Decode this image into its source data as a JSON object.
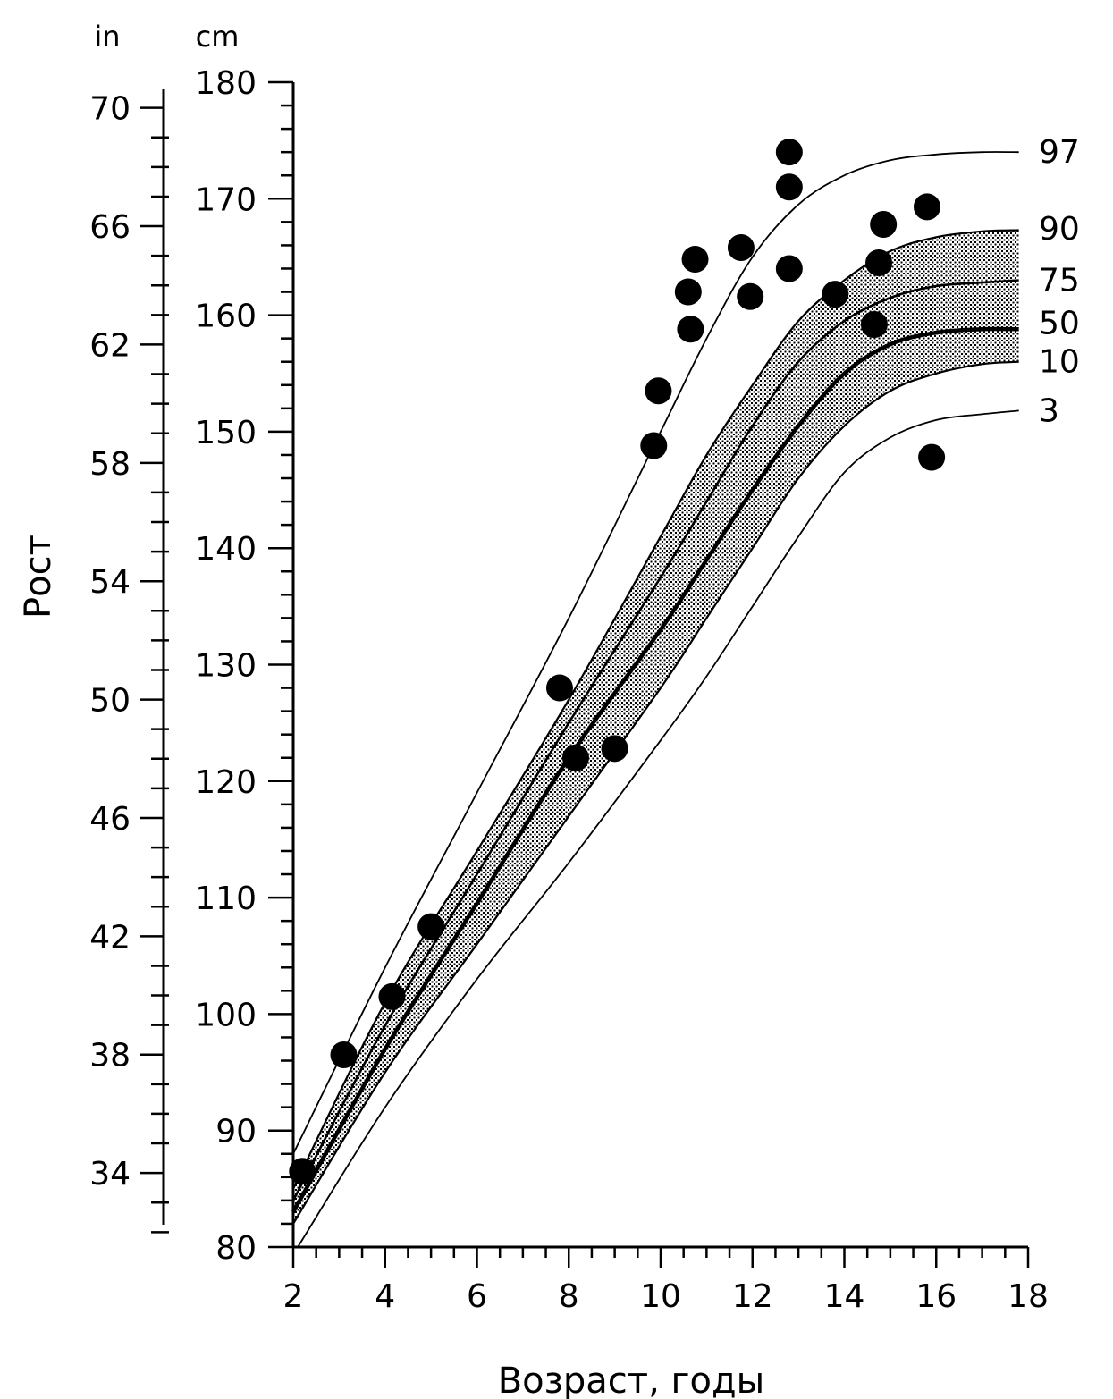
{
  "chart_data": {
    "type": "line",
    "xlabel": "Возраст, годы",
    "ylabel": "Рост",
    "unit_left": "in",
    "unit_right": "cm",
    "x_ticks": [
      "2",
      "4",
      "6",
      "8",
      "10",
      "12",
      "14",
      "16",
      "18"
    ],
    "xlim": [
      2,
      18
    ],
    "ylim_cm": [
      80,
      180
    ],
    "cm_ticks": [
      "80",
      "90",
      "100",
      "110",
      "120",
      "130",
      "140",
      "150",
      "160",
      "170",
      "180"
    ],
    "inch_ticks": [
      "34",
      "38",
      "42",
      "46",
      "50",
      "54",
      "58",
      "62",
      "66",
      "70"
    ],
    "ylim_in": [
      31.5,
      70.9
    ],
    "grid": false,
    "shaded_band": [
      "10",
      "90"
    ],
    "series": [
      {
        "name": "97",
        "x": [
          2,
          4,
          6,
          8,
          10,
          11,
          12,
          13,
          14,
          15,
          16,
          17,
          17.8
        ],
        "y": [
          88,
          104,
          119,
          134,
          150,
          158,
          165,
          169.5,
          172,
          173.3,
          173.8,
          174,
          174
        ]
      },
      {
        "name": "90",
        "x": [
          2,
          4,
          6,
          8,
          10,
          11,
          12,
          13,
          14,
          15,
          16,
          17,
          17.8
        ],
        "y": [
          85,
          101,
          114,
          127,
          141,
          148,
          154,
          159.5,
          163,
          165.5,
          166.7,
          167.2,
          167.3
        ]
      },
      {
        "name": "75",
        "x": [
          2,
          4,
          6,
          8,
          10,
          11,
          12,
          13,
          14,
          15,
          16,
          17,
          17.8
        ],
        "y": [
          84,
          99,
          112,
          125,
          137.5,
          144,
          150.5,
          156,
          159.5,
          161.5,
          162.5,
          162.8,
          163
        ]
      },
      {
        "name": "50",
        "x": [
          2,
          4,
          6,
          8,
          10,
          11,
          12,
          13,
          14,
          15,
          16,
          17,
          17.8
        ],
        "y": [
          83,
          97,
          109.5,
          122,
          133,
          139,
          145,
          150.5,
          155,
          157.5,
          158.5,
          158.8,
          158.8
        ]
      },
      {
        "name": "10",
        "x": [
          2,
          4,
          6,
          8,
          10,
          11,
          12,
          13,
          14,
          15,
          16,
          17,
          17.8
        ],
        "y": [
          82,
          95,
          106,
          117,
          128,
          134,
          140,
          146,
          150.5,
          153.5,
          155,
          155.8,
          156
        ]
      },
      {
        "name": "3",
        "x": [
          2.1,
          4,
          6,
          8,
          10,
          11,
          12,
          13,
          14,
          15,
          16,
          17,
          17.8
        ],
        "y": [
          80,
          92,
          103,
          113,
          123.5,
          129,
          135,
          141,
          146.5,
          149.5,
          151,
          151.5,
          151.8
        ]
      }
    ],
    "points": [
      {
        "x": 2.2,
        "y": 86.5
      },
      {
        "x": 3.1,
        "y": 96.5
      },
      {
        "x": 4.15,
        "y": 101.5
      },
      {
        "x": 5.0,
        "y": 107.5
      },
      {
        "x": 7.8,
        "y": 128.0
      },
      {
        "x": 8.15,
        "y": 122.0
      },
      {
        "x": 9.0,
        "y": 122.8
      },
      {
        "x": 9.85,
        "y": 148.8
      },
      {
        "x": 9.95,
        "y": 153.5
      },
      {
        "x": 10.6,
        "y": 162.0
      },
      {
        "x": 10.65,
        "y": 158.8
      },
      {
        "x": 10.75,
        "y": 164.8
      },
      {
        "x": 11.75,
        "y": 165.8
      },
      {
        "x": 11.95,
        "y": 161.6
      },
      {
        "x": 12.8,
        "y": 174.0
      },
      {
        "x": 12.8,
        "y": 171.0
      },
      {
        "x": 12.8,
        "y": 164.0
      },
      {
        "x": 13.8,
        "y": 161.8
      },
      {
        "x": 14.65,
        "y": 159.2
      },
      {
        "x": 14.75,
        "y": 164.5
      },
      {
        "x": 14.85,
        "y": 167.8
      },
      {
        "x": 15.8,
        "y": 169.3
      },
      {
        "x": 15.9,
        "y": 147.8
      }
    ]
  }
}
